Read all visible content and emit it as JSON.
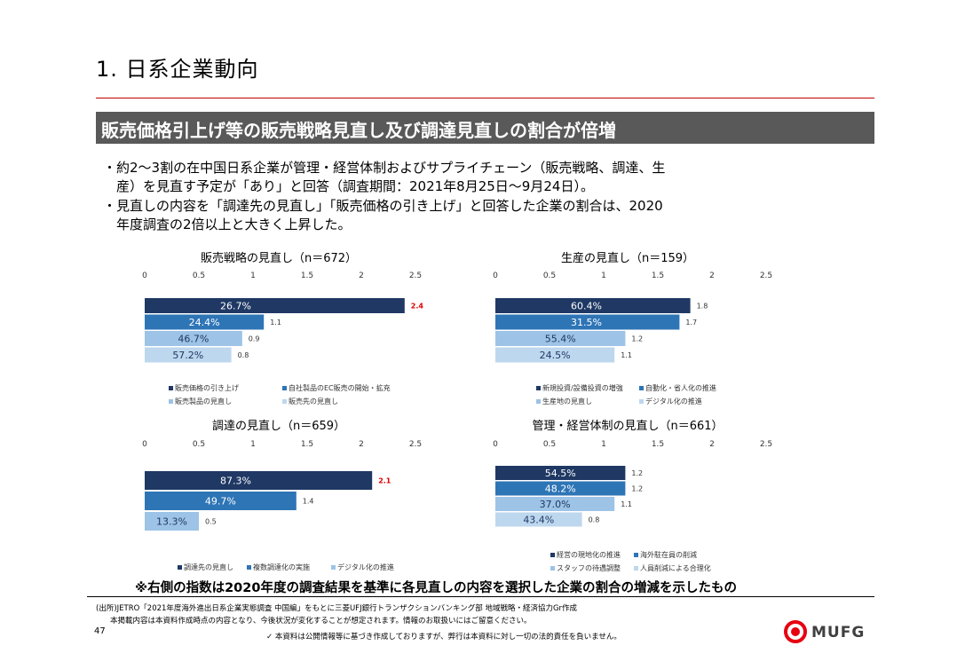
{
  "page": {
    "title": "1. 日系企業動向",
    "headline": "販売価格引上げ等の販売戦略見直し及び調達見直しの割合が倍増",
    "bullets": [
      "・約2～3割の在中国日系企業が管理・経営体制およびサプライチェーン（販売戦略、調達、生",
      "　産）を見直す予定が「あり」と回答（調査期間：2021年8月25日～9月24日）。",
      "・見直しの内容を「調達先の見直し」「販売価格の引き上げ」と回答した企業の割合は、2020",
      "　年度調査の2倍以上と大きく上昇した。"
    ],
    "footnote": "※右側の指数は2020年度の調査結果を基準に各見直しの内容を選択した企業の割合の増減を示したもの",
    "source": "(出所)JETRO「2021年度海外進出日系企業実態調査 中国編」をもとに三菱UFJ銀行トランザクションバンキング部 地域戦略・経済協力Gr作成",
    "disclaimer1": "本掲載内容は本資料作成時点の内容となり、今後状況が変化することが想定されます。情報のお取扱いにはご留意ください。",
    "disclaimer2": "✓ 本資料は公開情報等に基づき作成しておりますが、弊行は本資料に対し一切の法的責任を負いません。",
    "page_number": "47",
    "logo_text": "MUFG"
  },
  "colors": {
    "rule": "#c00000",
    "headline_bg": "#595959",
    "highlight": "#e00000"
  },
  "chart_data": [
    {
      "type": "bar",
      "title": "販売戦略の見直し（n＝672）",
      "xlim": [
        0,
        2.5
      ],
      "ticks": [
        "0",
        "0.5",
        "1",
        "1.5",
        "2",
        "2.5"
      ],
      "series": [
        {
          "name": "販売価格の引き上げ",
          "value": 2.4,
          "pct": "26.7%",
          "highlight": true
        },
        {
          "name": "自社製品のEC販売の開始・拡充",
          "value": 1.1,
          "pct": "24.4%"
        },
        {
          "name": "販売製品の見直し",
          "value": 0.9,
          "pct": "46.7%"
        },
        {
          "name": "販売先の見直し",
          "value": 0.8,
          "pct": "57.2%"
        }
      ]
    },
    {
      "type": "bar",
      "title": "生産の見直し（n＝159）",
      "xlim": [
        0,
        2.5
      ],
      "ticks": [
        "0",
        "0.5",
        "1",
        "1.5",
        "2",
        "2.5"
      ],
      "series": [
        {
          "name": "新規投資/設備投資の増強",
          "value": 1.8,
          "pct": "60.4%"
        },
        {
          "name": "自動化・省人化の推進",
          "value": 1.7,
          "pct": "31.5%"
        },
        {
          "name": "生産地の見直し",
          "value": 1.2,
          "pct": "55.4%"
        },
        {
          "name": "デジタル化の推進",
          "value": 1.1,
          "pct": "24.5%"
        }
      ]
    },
    {
      "type": "bar",
      "title": "調達の見直し（n＝659）",
      "xlim": [
        0,
        2.5
      ],
      "ticks": [
        "0",
        "0.5",
        "1",
        "1.5",
        "2",
        "2.5"
      ],
      "series": [
        {
          "name": "調達先の見直し",
          "value": 2.1,
          "pct": "87.3%",
          "highlight": true
        },
        {
          "name": "複数調達化の実施",
          "value": 1.4,
          "pct": "49.7%"
        },
        {
          "name": "デジタル化の推進",
          "value": 0.5,
          "pct": "13.3%"
        }
      ]
    },
    {
      "type": "bar",
      "title": "管理・経営体制の見直し（n＝661）",
      "xlim": [
        0,
        2.5
      ],
      "ticks": [
        "0",
        "0.5",
        "1",
        "1.5",
        "2",
        "2.5"
      ],
      "series": [
        {
          "name": "経営の現地化の推進",
          "value": 1.2,
          "pct": "54.5%"
        },
        {
          "name": "海外駐在員の削減",
          "value": 1.2,
          "pct": "48.2%"
        },
        {
          "name": "スタッフの待遇調整",
          "value": 1.1,
          "pct": "37.0%"
        },
        {
          "name": "人員削減による合理化",
          "value": 0.8,
          "pct": "43.4%"
        }
      ]
    }
  ]
}
